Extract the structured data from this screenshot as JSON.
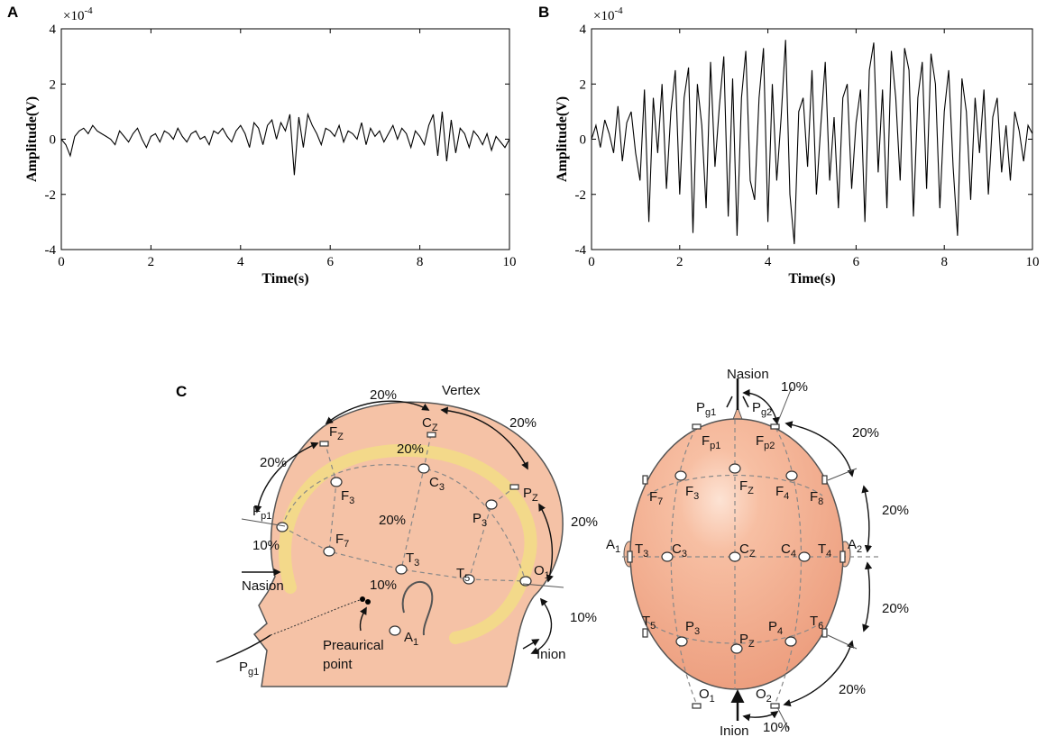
{
  "chart_data": [
    {
      "type": "line",
      "panel": "A",
      "ylabel": "Amplitude(V)",
      "xlabel": "Time(s)",
      "y_multiplier": "×10",
      "y_multiplier_power": "-4",
      "color": "#000000",
      "xlim": [
        0,
        10
      ],
      "xticks": [
        0,
        2,
        4,
        6,
        8,
        10
      ],
      "ylim": [
        -4,
        4
      ],
      "yticks": [
        -4,
        -2,
        0,
        2,
        4
      ],
      "x": [
        0,
        0.1,
        0.2,
        0.3,
        0.4,
        0.5,
        0.6,
        0.7,
        0.8,
        0.9,
        1,
        1.1,
        1.2,
        1.3,
        1.4,
        1.5,
        1.6,
        1.7,
        1.8,
        1.9,
        2,
        2.1,
        2.2,
        2.3,
        2.4,
        2.5,
        2.6,
        2.7,
        2.8,
        2.9,
        3,
        3.1,
        3.2,
        3.3,
        3.4,
        3.5,
        3.6,
        3.7,
        3.8,
        3.9,
        4,
        4.1,
        4.2,
        4.3,
        4.4,
        4.5,
        4.6,
        4.7,
        4.8,
        4.9,
        5,
        5.1,
        5.2,
        5.3,
        5.4,
        5.5,
        5.6,
        5.7,
        5.8,
        5.9,
        6,
        6.1,
        6.2,
        6.3,
        6.4,
        6.5,
        6.6,
        6.7,
        6.8,
        6.9,
        7,
        7.1,
        7.2,
        7.3,
        7.4,
        7.5,
        7.6,
        7.7,
        7.8,
        7.9,
        8,
        8.1,
        8.2,
        8.3,
        8.4,
        8.5,
        8.6,
        8.7,
        8.8,
        8.9,
        9,
        9.1,
        9.2,
        9.3,
        9.4,
        9.5,
        9.6,
        9.7,
        9.8,
        9.9,
        10
      ],
      "values": [
        0.0,
        -0.2,
        -0.6,
        0.1,
        0.3,
        0.4,
        0.2,
        0.5,
        0.3,
        0.2,
        0.1,
        0.0,
        -0.2,
        0.3,
        0.1,
        -0.1,
        0.2,
        0.4,
        0.0,
        -0.3,
        0.1,
        0.2,
        -0.1,
        0.3,
        0.2,
        0.0,
        0.4,
        0.1,
        -0.1,
        0.2,
        0.3,
        0.0,
        0.1,
        -0.2,
        0.3,
        0.2,
        0.4,
        0.1,
        -0.1,
        0.3,
        0.5,
        0.2,
        -0.3,
        0.6,
        0.4,
        -0.2,
        0.5,
        0.7,
        0.0,
        0.6,
        0.3,
        0.9,
        -1.3,
        0.8,
        -0.3,
        0.9,
        0.5,
        0.2,
        -0.2,
        0.4,
        0.3,
        0.1,
        0.5,
        -0.1,
        0.3,
        0.2,
        0.0,
        0.6,
        -0.2,
        0.4,
        0.1,
        0.3,
        -0.1,
        0.2,
        0.5,
        0.0,
        0.4,
        0.2,
        -0.3,
        0.3,
        0.1,
        -0.2,
        0.5,
        0.9,
        -0.6,
        1.0,
        -0.8,
        0.7,
        -0.5,
        0.4,
        0.2,
        -0.3,
        0.3,
        0.1,
        -0.2,
        0.2,
        -0.4,
        0.1,
        -0.1,
        -0.3,
        0.0
      ]
    },
    {
      "type": "line",
      "panel": "B",
      "ylabel": "Amplitude(V)",
      "xlabel": "Time(s)",
      "y_multiplier": "×10",
      "y_multiplier_power": "-4",
      "color": "#000000",
      "xlim": [
        0,
        10
      ],
      "xticks": [
        0,
        2,
        4,
        6,
        8,
        10
      ],
      "ylim": [
        -4,
        4
      ],
      "yticks": [
        -4,
        -2,
        0,
        2,
        4
      ],
      "x": [
        0,
        0.1,
        0.2,
        0.3,
        0.4,
        0.5,
        0.6,
        0.7,
        0.8,
        0.9,
        1,
        1.1,
        1.2,
        1.3,
        1.4,
        1.5,
        1.6,
        1.7,
        1.8,
        1.9,
        2,
        2.1,
        2.2,
        2.3,
        2.4,
        2.5,
        2.6,
        2.7,
        2.8,
        2.9,
        3,
        3.1,
        3.2,
        3.3,
        3.4,
        3.5,
        3.6,
        3.7,
        3.8,
        3.9,
        4,
        4.1,
        4.2,
        4.3,
        4.4,
        4.5,
        4.6,
        4.7,
        4.8,
        4.9,
        5,
        5.1,
        5.2,
        5.3,
        5.4,
        5.5,
        5.6,
        5.7,
        5.8,
        5.9,
        6,
        6.1,
        6.2,
        6.3,
        6.4,
        6.5,
        6.6,
        6.7,
        6.8,
        6.9,
        7,
        7.1,
        7.2,
        7.3,
        7.4,
        7.5,
        7.6,
        7.7,
        7.8,
        7.9,
        8,
        8.1,
        8.2,
        8.3,
        8.4,
        8.5,
        8.6,
        8.7,
        8.8,
        8.9,
        9,
        9.1,
        9.2,
        9.3,
        9.4,
        9.5,
        9.6,
        9.7,
        9.8,
        9.9,
        10
      ],
      "values": [
        0.0,
        0.5,
        -0.3,
        0.7,
        0.2,
        -0.5,
        1.2,
        -0.8,
        0.6,
        1.0,
        -0.5,
        -1.5,
        1.8,
        -3.0,
        1.5,
        -0.5,
        2.0,
        -1.8,
        1.0,
        2.5,
        -2.0,
        1.5,
        2.6,
        -3.4,
        2.0,
        0.5,
        -2.5,
        2.8,
        -1.0,
        1.2,
        3.0,
        -2.8,
        2.2,
        -3.5,
        1.5,
        3.2,
        -1.5,
        -2.2,
        1.5,
        3.3,
        -3.0,
        2.0,
        -1.5,
        0.8,
        3.6,
        -2.0,
        -3.8,
        1.0,
        1.5,
        -1.0,
        2.5,
        -2.0,
        0.5,
        2.8,
        -1.5,
        0.8,
        -2.5,
        1.5,
        2.0,
        -1.8,
        0.6,
        1.8,
        -3.0,
        2.5,
        3.5,
        -1.2,
        1.8,
        -2.5,
        3.2,
        1.5,
        -1.5,
        3.3,
        2.5,
        -2.8,
        1.5,
        2.8,
        -1.8,
        3.1,
        2.0,
        -2.5,
        1.0,
        2.5,
        -1.0,
        -3.5,
        2.2,
        1.0,
        -2.2,
        1.5,
        -0.5,
        1.8,
        -2.0,
        0.8,
        1.5,
        -1.2,
        0.5,
        -1.5,
        1.0,
        0.3,
        -0.8,
        0.5,
        0.2
      ]
    }
  ],
  "diagram": {
    "panel": "C",
    "side_labels": [
      {
        "text": "20%"
      },
      {
        "text": "Vertex"
      },
      {
        "text": "F",
        "sub": "Z"
      },
      {
        "text": "C",
        "sub": "Z"
      },
      {
        "text": "20%"
      },
      {
        "text": "20%"
      },
      {
        "text": "20%"
      },
      {
        "text": "F",
        "sub": "3"
      },
      {
        "text": "C",
        "sub": "3"
      },
      {
        "text": "P",
        "sub": "Z"
      },
      {
        "text": "F",
        "sub": "p1"
      },
      {
        "text": "20%"
      },
      {
        "text": "P",
        "sub": "3"
      },
      {
        "text": "20%"
      },
      {
        "text": "10%"
      },
      {
        "text": "F",
        "sub": "7"
      },
      {
        "text": "T",
        "sub": "3"
      },
      {
        "text": "T",
        "sub": "5"
      },
      {
        "text": "O",
        "sub": "1"
      },
      {
        "text": "Nasion"
      },
      {
        "text": "10%"
      },
      {
        "text": "10%"
      },
      {
        "text": "A",
        "sub": "1"
      },
      {
        "text": "Preaurical"
      },
      {
        "text": "point"
      },
      {
        "text": "Inion"
      },
      {
        "text": "P",
        "sub": "g1"
      }
    ],
    "top_labels": [
      {
        "text": "Nasion"
      },
      {
        "text": "10%"
      },
      {
        "text": "P",
        "sub": "g1"
      },
      {
        "text": "P",
        "sub": "g2"
      },
      {
        "text": "F",
        "sub": "p1"
      },
      {
        "text": "F",
        "sub": "p2"
      },
      {
        "text": "20%"
      },
      {
        "text": "F",
        "sub": "7"
      },
      {
        "text": "F",
        "sub": "3"
      },
      {
        "text": "F",
        "sub": "Z"
      },
      {
        "text": "F",
        "sub": "4"
      },
      {
        "text": "F",
        "sub": "8"
      },
      {
        "text": "20%"
      },
      {
        "text": "A",
        "sub": "1"
      },
      {
        "text": "T",
        "sub": "3"
      },
      {
        "text": "C",
        "sub": "3"
      },
      {
        "text": "C",
        "sub": "Z"
      },
      {
        "text": "C",
        "sub": "4"
      },
      {
        "text": "T",
        "sub": "4"
      },
      {
        "text": "A",
        "sub": "2"
      },
      {
        "text": "20%"
      },
      {
        "text": "T",
        "sub": "5"
      },
      {
        "text": "P",
        "sub": "3"
      },
      {
        "text": "P",
        "sub": "Z"
      },
      {
        "text": "P",
        "sub": "4"
      },
      {
        "text": "T",
        "sub": "6"
      },
      {
        "text": "O",
        "sub": "1"
      },
      {
        "text": "O",
        "sub": "2"
      },
      {
        "text": "20%"
      },
      {
        "text": "Inion"
      },
      {
        "text": "10%"
      }
    ]
  }
}
